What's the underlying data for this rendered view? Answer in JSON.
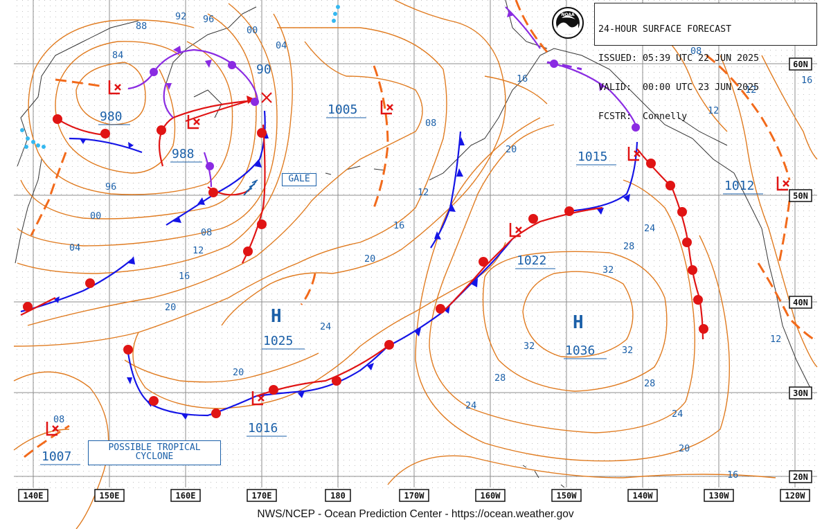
{
  "header": {
    "line1": "24-HOUR SURFACE FORECAST",
    "line2": "ISSUED: 05:39 UTC 22 JUN 2025",
    "line3": "VALID:  00:00 UTC 23 JUN 2025",
    "line4": "FCSTR:  Connelly"
  },
  "footer": "NWS/NCEP - Ocean Prediction Center - https://ocean.weather.gov",
  "logo": {
    "text": "NOAA"
  },
  "longitude_labels": [
    "140E",
    "150E",
    "160E",
    "170E",
    "180",
    "170W",
    "160W",
    "150W",
    "140W",
    "130W",
    "120W"
  ],
  "latitude_labels": [
    "60N",
    "50N",
    "40N",
    "30N",
    "20N"
  ],
  "pressure_centers": [
    {
      "type": "L",
      "value": "980"
    },
    {
      "type": "L",
      "value": "988"
    },
    {
      "type": "L",
      "value": "1005"
    },
    {
      "type": "L",
      "value": "1015"
    },
    {
      "type": "L",
      "value": "1012"
    },
    {
      "type": "L",
      "value": "1022"
    },
    {
      "type": "L",
      "value": "1016"
    },
    {
      "type": "L",
      "value": "1007"
    },
    {
      "type": "H",
      "value": "1025"
    },
    {
      "type": "H",
      "value": "1036"
    }
  ],
  "isobar_labels": [
    "92",
    "96",
    "88",
    "84",
    "00",
    "04",
    "90",
    "08",
    "20",
    "12",
    "16",
    "24",
    "28",
    "32",
    "12",
    "16",
    "12",
    "08",
    "96",
    "00",
    "04",
    "08",
    "12",
    "16",
    "20",
    "20",
    "24",
    "28",
    "32",
    "32",
    "28",
    "24",
    "24",
    "20",
    "16",
    "12",
    "08",
    "20",
    "16"
  ],
  "warnings": {
    "gale": "GALE"
  },
  "annotations": {
    "tropical": [
      "POSSIBLE TROPICAL",
      "CYCLONE"
    ]
  },
  "colors": {
    "isobar": "#e07b20",
    "label": "#1a5fa8",
    "cold_front": "#1414e6",
    "warm_front": "#e01414",
    "occluded": "#8a2be2",
    "trough": "#f26a1b",
    "grid": "#888888"
  }
}
